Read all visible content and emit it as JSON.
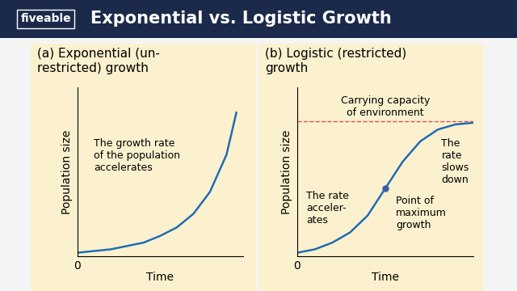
{
  "header": {
    "brand": "fiveable",
    "title": "Exponential vs. Logistic Growth"
  },
  "chart_data": [
    {
      "type": "line",
      "title": "(a) Exponential (un-\nrestricted) growth",
      "x_label": "Time",
      "y_label": "Population size",
      "x": [
        0,
        1,
        2,
        3,
        4,
        5,
        6,
        7,
        8,
        9,
        9.6
      ],
      "values": [
        2,
        3,
        4,
        6,
        8,
        12,
        17,
        25,
        38,
        60,
        85
      ],
      "color": "#1f6db5",
      "xlim": [
        0,
        10
      ],
      "ylim": [
        0,
        100
      ],
      "xticks": [
        0
      ],
      "yticks": [],
      "tick_labels": "x",
      "annotations": [
        "The growth rate\nof the population\naccelerates"
      ]
    },
    {
      "type": "line",
      "title": "(b) Logistic (restricted)\ngrowth",
      "x_label": "Time",
      "y_label": "Population size",
      "x": [
        0,
        1,
        2,
        3,
        4,
        5,
        6,
        7,
        8,
        9,
        10
      ],
      "values": [
        2,
        4,
        8,
        14,
        24,
        40,
        56,
        68,
        75,
        78,
        79
      ],
      "color": "#1f6db5",
      "xlim": [
        0,
        10
      ],
      "ylim": [
        0,
        100
      ],
      "xticks": [
        0
      ],
      "yticks": [],
      "tick_labels": "x",
      "reference_line": {
        "y": 80,
        "label": "Carrying capacity\nof environment",
        "color": "#e05050",
        "line_style": "dashed"
      },
      "highlight": {
        "x": 5,
        "y": 40,
        "label": "Point of\nmaximum\ngrowth",
        "color": "#3a5fa8"
      },
      "annotations": [
        "The rate\nacceler-\nates",
        "The\nrate\nslows\ndown"
      ]
    }
  ]
}
